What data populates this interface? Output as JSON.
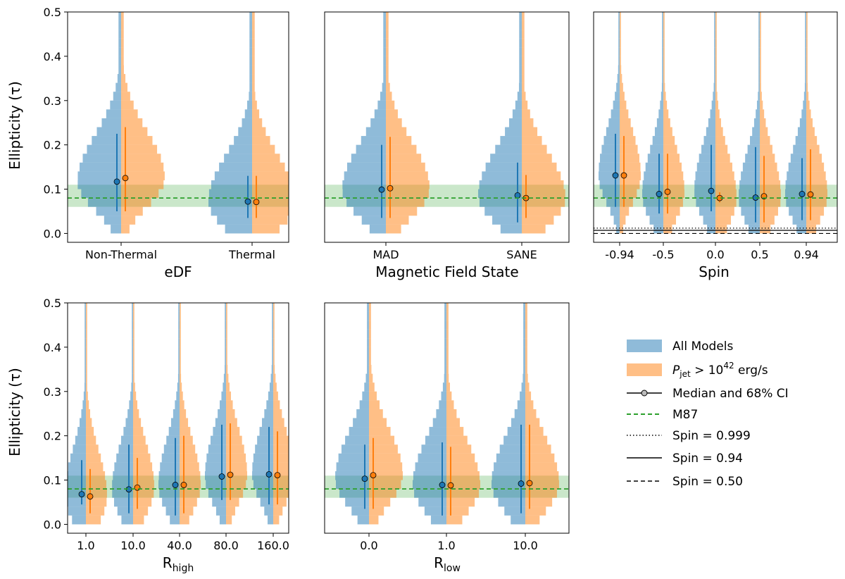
{
  "figure": {
    "ylabel": "Ellipticity (τ)",
    "yticks": [
      "0.0",
      "0.1",
      "0.2",
      "0.3",
      "0.4",
      "0.5"
    ]
  },
  "legend": {
    "all_models": "All Models",
    "pjet_label": "P",
    "pjet_sub": "jet",
    "pjet_rest": " > 10",
    "pjet_sup": "42",
    "pjet_unit": " erg/s",
    "median": "Median and 68% CI",
    "m87": "M87",
    "spin999": "Spin = 0.999",
    "spin094": "Spin = 0.94",
    "spin050": "Spin = 0.50"
  },
  "colors": {
    "all": "#1f77b4",
    "jet": "#ff7f0e",
    "m87": "#2ca02c",
    "band": "#2ca02c"
  },
  "chart_data": [
    {
      "type": "histogram-violin",
      "xlabel": "eDF",
      "ylabel": "Ellipticity (τ)",
      "ylim": [
        -0.02,
        0.5
      ],
      "m87": 0.08,
      "m87_band": [
        0.06,
        0.11
      ],
      "categories": [
        "Non-Thermal",
        "Thermal"
      ],
      "series": [
        {
          "name": "All Models",
          "median": [
            0.117,
            0.072
          ],
          "ci_low": [
            0.05,
            0.035
          ],
          "ci_high": [
            0.225,
            0.13
          ]
        },
        {
          "name": "P_jet > 10^42 erg/s",
          "median": [
            0.125,
            0.071
          ],
          "ci_low": [
            0.05,
            0.035
          ],
          "ci_high": [
            0.24,
            0.13
          ]
        }
      ]
    },
    {
      "type": "histogram-violin",
      "xlabel": "Magnetic Field State",
      "ylim": [
        -0.02,
        0.5
      ],
      "m87": 0.08,
      "m87_band": [
        0.06,
        0.11
      ],
      "categories": [
        "MAD",
        "SANE"
      ],
      "series": [
        {
          "name": "All Models",
          "median": [
            0.099,
            0.086
          ],
          "ci_low": [
            0.035,
            0.025
          ],
          "ci_high": [
            0.2,
            0.16
          ]
        },
        {
          "name": "P_jet > 10^42 erg/s",
          "median": [
            0.102,
            0.08
          ],
          "ci_low": [
            0.035,
            0.035
          ],
          "ci_high": [
            0.218,
            0.132
          ]
        }
      ]
    },
    {
      "type": "histogram-violin",
      "xlabel": "Spin",
      "ylim": [
        -0.02,
        0.5
      ],
      "m87": 0.08,
      "m87_band": [
        0.06,
        0.11
      ],
      "spin_lines": {
        "spin_0_999": 0.012,
        "spin_0_94": 0.007,
        "spin_0_50": 0.0
      },
      "categories": [
        "-0.94",
        "-0.5",
        "0.0",
        "0.5",
        "0.94"
      ],
      "series": [
        {
          "name": "All Models",
          "median": [
            0.131,
            0.089,
            0.096,
            0.081,
            0.089
          ],
          "ci_low": [
            0.06,
            0.045,
            0.05,
            0.025,
            0.03
          ],
          "ci_high": [
            0.225,
            0.18,
            0.2,
            0.195,
            0.17
          ]
        },
        {
          "name": "P_jet > 10^42 erg/s",
          "median": [
            0.131,
            0.094,
            0.08,
            0.084,
            0.088
          ],
          "ci_low": [
            0.06,
            0.045,
            0.07,
            0.025,
            0.03
          ],
          "ci_high": [
            0.22,
            0.18,
            0.093,
            0.175,
            0.19
          ]
        }
      ]
    },
    {
      "type": "histogram-violin",
      "xlabel": "R_high",
      "ylim": [
        -0.02,
        0.5
      ],
      "m87": 0.08,
      "m87_band": [
        0.06,
        0.11
      ],
      "categories": [
        "1.0",
        "10.0",
        "40.0",
        "80.0",
        "160.0"
      ],
      "series": [
        {
          "name": "All Models",
          "median": [
            0.068,
            0.079,
            0.089,
            0.108,
            0.113
          ],
          "ci_low": [
            0.045,
            0.025,
            0.02,
            0.055,
            0.045
          ],
          "ci_high": [
            0.145,
            0.18,
            0.195,
            0.225,
            0.22
          ]
        },
        {
          "name": "P_jet > 10^42 erg/s",
          "median": [
            0.063,
            0.083,
            0.089,
            0.112,
            0.111
          ],
          "ci_low": [
            0.025,
            0.035,
            0.025,
            0.055,
            0.045
          ],
          "ci_high": [
            0.125,
            0.15,
            0.2,
            0.228,
            0.21
          ]
        }
      ]
    },
    {
      "type": "histogram-violin",
      "xlabel": "R_low",
      "ylim": [
        -0.02,
        0.5
      ],
      "m87": 0.08,
      "m87_band": [
        0.06,
        0.11
      ],
      "categories": [
        "0.0",
        "1.0",
        "10.0"
      ],
      "series": [
        {
          "name": "All Models",
          "median": [
            0.103,
            0.089,
            0.092
          ],
          "ci_low": [
            0.035,
            0.02,
            0.025
          ],
          "ci_high": [
            0.18,
            0.185,
            0.225
          ]
        },
        {
          "name": "P_jet > 10^42 erg/s",
          "median": [
            0.111,
            0.088,
            0.093
          ],
          "ci_low": [
            0.035,
            0.02,
            0.035
          ],
          "ci_high": [
            0.195,
            0.175,
            0.225
          ]
        }
      ]
    }
  ]
}
